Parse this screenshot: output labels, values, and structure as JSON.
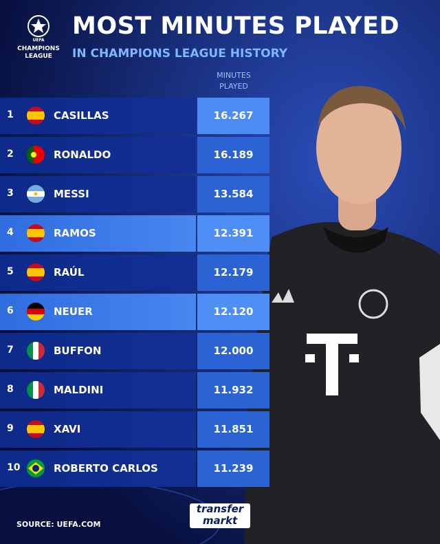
{
  "header": {
    "logo_top": "UEFA",
    "logo_line1": "CHAMPIONS",
    "logo_line2": "LEAGUE",
    "title": "MOST MINUTES PLAYED",
    "subtitle": "IN CHAMPIONS LEAGUE HISTORY"
  },
  "table": {
    "column_header": "MINUTES PLAYED",
    "rows": [
      {
        "rank": 1,
        "name": "CASILLAS",
        "minutes": "16.267"
      },
      {
        "rank": 2,
        "name": "RONALDO",
        "minutes": "16.189"
      },
      {
        "rank": 3,
        "name": "MESSI",
        "minutes": "13.584"
      },
      {
        "rank": 4,
        "name": "RAMOS",
        "minutes": "12.391"
      },
      {
        "rank": 5,
        "name": "RAÚL",
        "minutes": "12.179"
      },
      {
        "rank": 6,
        "name": "NEUER",
        "minutes": "12.120"
      },
      {
        "rank": 7,
        "name": "BUFFON",
        "minutes": "12.000"
      },
      {
        "rank": 8,
        "name": "MALDINI",
        "minutes": "11.932"
      },
      {
        "rank": 9,
        "name": "XAVI",
        "minutes": "11.851"
      },
      {
        "rank": 10,
        "name": "ROBERTO CARLOS",
        "minutes": "11.239"
      }
    ]
  },
  "footer": {
    "source": "SOURCE: UEFA.COM",
    "brand_top": "transfer",
    "brand_bottom": "markt"
  }
}
